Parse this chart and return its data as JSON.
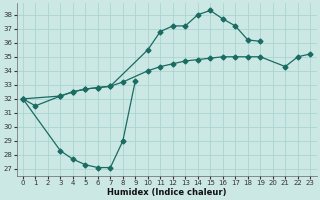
{
  "xlabel": "Humidex (Indice chaleur)",
  "bg_color": "#cce8e4",
  "grid_color": "#aad4d0",
  "line_color": "#1a6b62",
  "xlim": [
    -0.5,
    23.5
  ],
  "ylim": [
    26.5,
    38.8
  ],
  "yticks": [
    27,
    28,
    29,
    30,
    31,
    32,
    33,
    34,
    35,
    36,
    37,
    38
  ],
  "xticks": [
    0,
    1,
    2,
    3,
    4,
    5,
    6,
    7,
    8,
    9,
    10,
    11,
    12,
    13,
    14,
    15,
    16,
    17,
    18,
    19,
    20,
    21,
    22,
    23
  ],
  "series1_x": [
    0,
    1,
    3,
    4,
    5,
    6,
    7,
    10,
    11,
    12,
    13,
    14,
    15,
    16,
    17,
    18,
    19
  ],
  "series1_y": [
    32.0,
    31.5,
    32.2,
    32.5,
    32.7,
    32.8,
    32.9,
    35.5,
    36.8,
    37.2,
    37.2,
    38.0,
    38.3,
    37.7,
    37.2,
    36.2,
    36.1
  ],
  "series2_x": [
    0,
    3,
    4,
    5,
    6,
    7,
    8,
    10,
    11,
    12,
    13,
    14,
    15,
    16,
    17,
    18,
    19,
    21,
    22,
    23
  ],
  "series2_y": [
    32.0,
    32.2,
    32.5,
    32.7,
    32.8,
    32.9,
    33.2,
    34.0,
    34.3,
    34.5,
    34.7,
    34.8,
    34.9,
    35.0,
    35.0,
    35.0,
    35.0,
    34.3,
    35.0,
    35.2
  ],
  "series3_x": [
    0,
    3,
    4,
    5,
    6,
    7,
    8,
    9
  ],
  "series3_y": [
    32.0,
    28.3,
    27.7,
    27.3,
    27.1,
    27.1,
    29.0,
    33.3
  ]
}
